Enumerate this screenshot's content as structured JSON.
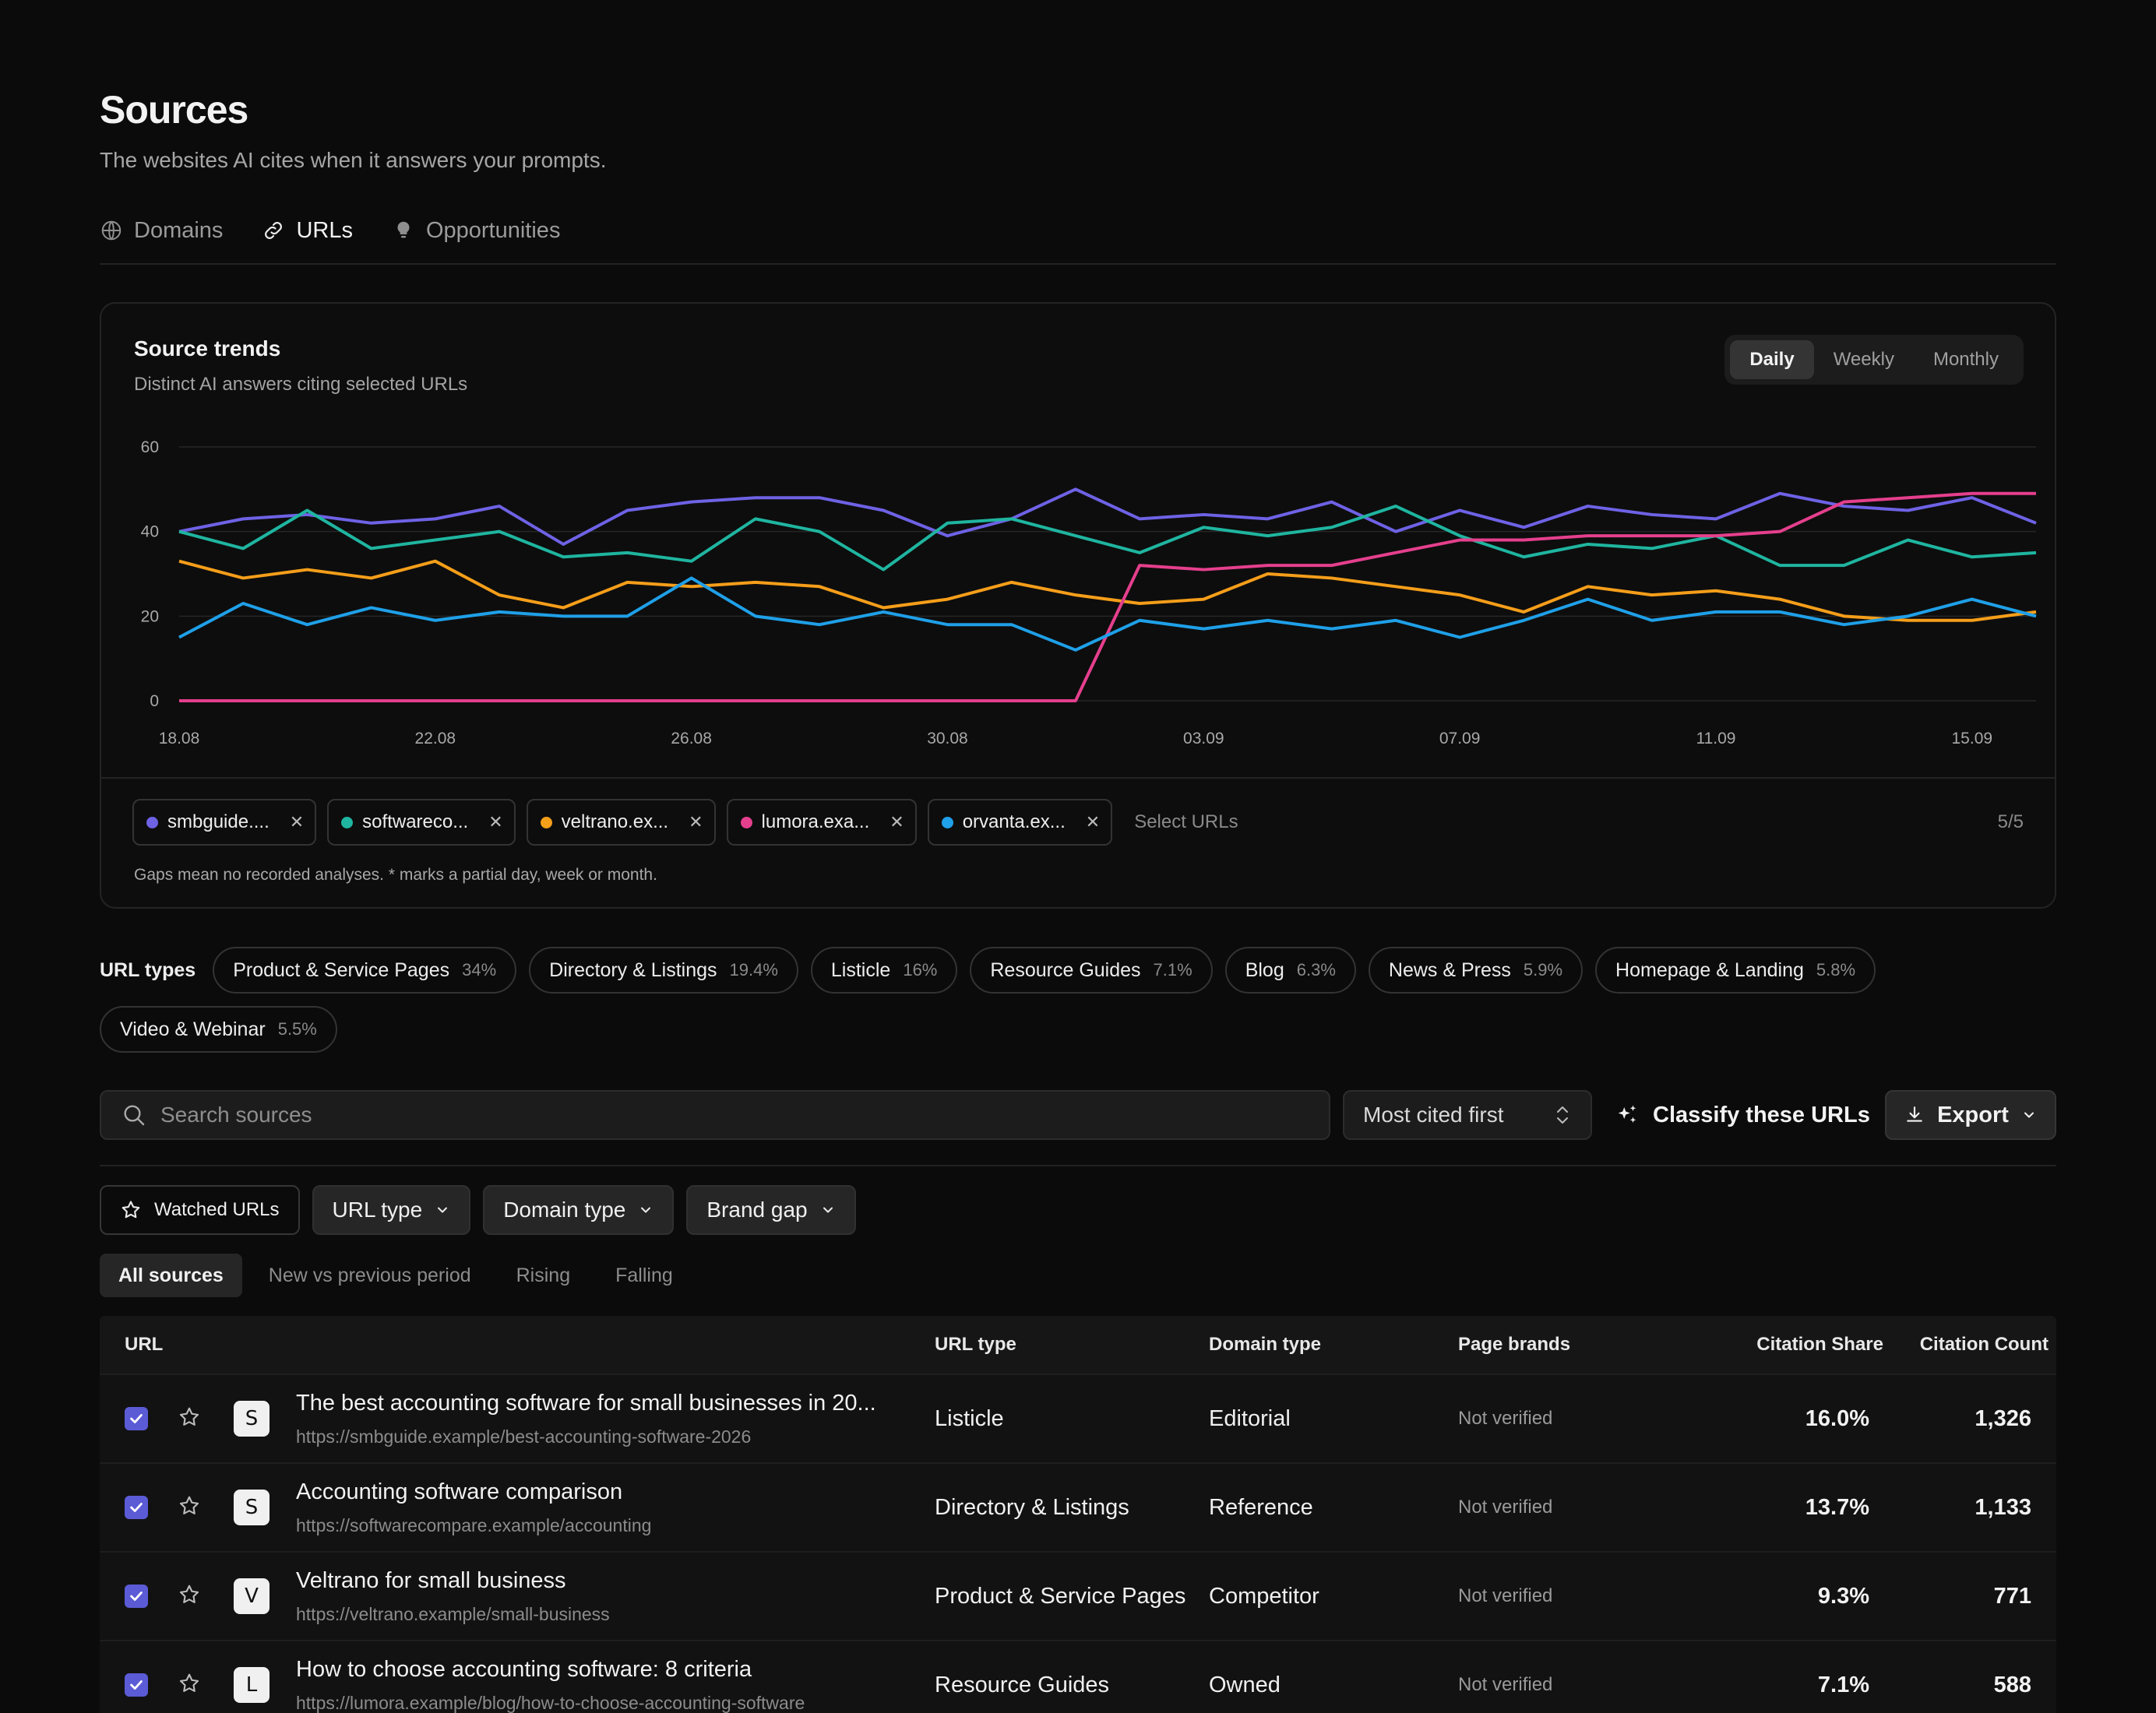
{
  "header": {
    "title": "Sources",
    "subtitle": "The websites AI cites when it answers your prompts."
  },
  "tabs": [
    {
      "label": "Domains",
      "icon": "globe-icon",
      "active": false
    },
    {
      "label": "URLs",
      "icon": "link-icon",
      "active": true
    },
    {
      "label": "Opportunities",
      "icon": "lightbulb-icon",
      "active": false
    }
  ],
  "trends": {
    "title": "Source trends",
    "subtitle": "Distinct AI answers citing selected URLs",
    "periods": [
      "Daily",
      "Weekly",
      "Monthly"
    ],
    "active_period": "Daily",
    "chips": [
      {
        "label": "smbguide....",
        "color": "#6e62e5"
      },
      {
        "label": "softwareco...",
        "color": "#1fb5a0"
      },
      {
        "label": "veltrano.ex...",
        "color": "#f59e1a"
      },
      {
        "label": "lumora.exa...",
        "color": "#e53f8d"
      },
      {
        "label": "orvanta.ex...",
        "color": "#1fa0e8"
      }
    ],
    "select_placeholder": "Select URLs",
    "count": "5/5",
    "note": "Gaps mean no recorded analyses. * marks a partial day, week or month."
  },
  "chart_data": {
    "type": "line",
    "x": [
      "18.08",
      "19.08",
      "20.08",
      "21.08",
      "22.08",
      "23.08",
      "24.08",
      "25.08",
      "26.08",
      "27.08",
      "28.08",
      "29.08",
      "30.08",
      "31.08",
      "01.09",
      "02.09",
      "03.09",
      "04.09",
      "05.09",
      "06.09",
      "07.09",
      "08.09",
      "09.09",
      "10.09",
      "11.09",
      "12.09",
      "13.09",
      "14.09",
      "15.09",
      "16.09"
    ],
    "x_tick_labels": [
      "18.08",
      "22.08",
      "26.08",
      "30.08",
      "03.09",
      "07.09",
      "11.09",
      "15.09"
    ],
    "y_ticks": [
      0,
      20,
      40,
      60
    ],
    "ylim": [
      0,
      60
    ],
    "grid": true,
    "series": [
      {
        "name": "smbguide....",
        "color": "#6e62e5",
        "values": [
          40,
          43,
          44,
          42,
          43,
          46,
          37,
          45,
          47,
          48,
          48,
          45,
          39,
          43,
          50,
          43,
          44,
          43,
          47,
          40,
          45,
          41,
          46,
          44,
          43,
          49,
          46,
          45,
          48,
          42
        ]
      },
      {
        "name": "softwareco...",
        "color": "#1fb5a0",
        "values": [
          40,
          36,
          45,
          36,
          38,
          40,
          34,
          35,
          33,
          43,
          40,
          31,
          42,
          43,
          39,
          35,
          41,
          39,
          41,
          46,
          39,
          34,
          37,
          36,
          39,
          32,
          32,
          38,
          34,
          35
        ]
      },
      {
        "name": "veltrano.ex...",
        "color": "#f59e1a",
        "values": [
          33,
          29,
          31,
          29,
          33,
          25,
          22,
          28,
          27,
          28,
          27,
          22,
          24,
          28,
          25,
          23,
          24,
          30,
          29,
          27,
          25,
          21,
          27,
          25,
          26,
          24,
          20,
          19,
          19,
          21
        ]
      },
      {
        "name": "lumora.exa...",
        "color": "#e53f8d",
        "values": [
          0,
          0,
          0,
          0,
          0,
          0,
          0,
          0,
          0,
          0,
          0,
          0,
          0,
          0,
          0,
          32,
          31,
          32,
          32,
          35,
          38,
          38,
          39,
          39,
          39,
          40,
          47,
          48,
          49,
          49
        ]
      },
      {
        "name": "orvanta.ex...",
        "color": "#1fa0e8",
        "values": [
          15,
          23,
          18,
          22,
          19,
          21,
          20,
          20,
          29,
          20,
          18,
          21,
          18,
          18,
          12,
          19,
          17,
          19,
          17,
          19,
          15,
          19,
          24,
          19,
          21,
          21,
          18,
          20,
          24,
          20
        ]
      }
    ]
  },
  "url_types": {
    "label": "URL types",
    "items": [
      {
        "name": "Product & Service Pages",
        "pct": "34%"
      },
      {
        "name": "Directory & Listings",
        "pct": "19.4%"
      },
      {
        "name": "Listicle",
        "pct": "16%"
      },
      {
        "name": "Resource Guides",
        "pct": "7.1%"
      },
      {
        "name": "Blog",
        "pct": "6.3%"
      },
      {
        "name": "News & Press",
        "pct": "5.9%"
      },
      {
        "name": "Homepage & Landing",
        "pct": "5.8%"
      },
      {
        "name": "Video & Webinar",
        "pct": "5.5%"
      }
    ]
  },
  "toolbar": {
    "search_placeholder": "Search sources",
    "sort_value": "Most cited first",
    "classify_label": "Classify these URLs",
    "export_label": "Export"
  },
  "filters": {
    "watched": "Watched URLs",
    "url_type": "URL type",
    "domain_type": "Domain type",
    "brand_gap": "Brand gap"
  },
  "subtabs": [
    "All sources",
    "New vs previous period",
    "Rising",
    "Falling"
  ],
  "table": {
    "headers": {
      "url": "URL",
      "url_type": "URL type",
      "domain_type": "Domain type",
      "page_brands": "Page brands",
      "citation_share": "Citation Share",
      "citation_count": "Citation Count"
    },
    "rows": [
      {
        "favicon": "S",
        "title": "The best accounting software for small businesses in 20...",
        "url": "https://smbguide.example/best-accounting-software-2026",
        "url_type": "Listicle",
        "domain_type": "Editorial",
        "brands": "Not verified",
        "share": "16.0%",
        "count": "1,326"
      },
      {
        "favicon": "S",
        "title": "Accounting software comparison",
        "url": "https://softwarecompare.example/accounting",
        "url_type": "Directory & Listings",
        "domain_type": "Reference",
        "brands": "Not verified",
        "share": "13.7%",
        "count": "1,133"
      },
      {
        "favicon": "V",
        "title": "Veltrano for small business",
        "url": "https://veltrano.example/small-business",
        "url_type": "Product & Service Pages",
        "domain_type": "Competitor",
        "brands": "Not verified",
        "share": "9.3%",
        "count": "771"
      },
      {
        "favicon": "L",
        "title": "How to choose accounting software: 8 criteria",
        "url": "https://lumora.example/blog/how-to-choose-accounting-software",
        "url_type": "Resource Guides",
        "domain_type": "Owned",
        "brands": "Not verified",
        "share": "7.1%",
        "count": "588"
      }
    ]
  }
}
